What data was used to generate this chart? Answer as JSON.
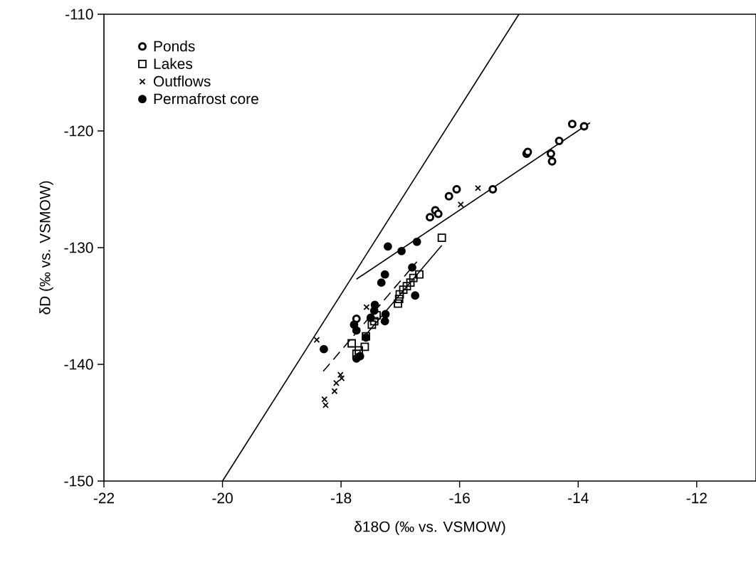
{
  "chart_data": {
    "type": "scatter",
    "xlabel": "δ18O (‰ vs. VSMOW)",
    "ylabel": "δD (‰ vs. VSMOW)",
    "xlim": [
      -22,
      -11
    ],
    "ylim": [
      -150,
      -110
    ],
    "xticks": [
      -22,
      -20,
      -18,
      -16,
      -14,
      -12
    ],
    "yticks": [
      -150,
      -140,
      -130,
      -120,
      -110
    ],
    "grid": false,
    "legend": "top left",
    "series": [
      {
        "name": "Ponds",
        "color": "#000000",
        "marker": "circle",
        "x": [
          -16.5,
          -16.41,
          -16.36,
          -16.18,
          -16.05,
          -15.44,
          -14.87,
          -14.85,
          -14.46,
          -14.44,
          -14.32,
          -14.1,
          -13.9,
          -17.74
        ],
        "values": [
          -127.4,
          -126.8,
          -127.1,
          -125.6,
          -125.0,
          -125.0,
          -121.95,
          -121.8,
          -121.95,
          -122.6,
          -120.85,
          -119.4,
          -119.6,
          -136.1
        ]
      },
      {
        "name": "Lakes",
        "color": "#000000",
        "marker": "square",
        "x": [
          -16.3,
          -16.68,
          -16.78,
          -16.83,
          -16.89,
          -16.95,
          -17.01,
          -17.02,
          -17.04,
          -17.4,
          -17.44,
          -17.48,
          -17.58,
          -17.82,
          -17.6,
          -17.7,
          -17.74
        ],
        "values": [
          -129.15,
          -132.3,
          -132.6,
          -133.0,
          -133.3,
          -133.6,
          -134.0,
          -134.4,
          -134.8,
          -135.8,
          -136.3,
          -136.6,
          -137.6,
          -138.2,
          -138.5,
          -138.8,
          -139.1
        ]
      },
      {
        "name": "Outflows",
        "color": "#000000",
        "marker": "cross",
        "x": [
          -18.41,
          -17.57,
          -18.01,
          -17.99,
          -18.08,
          -18.11,
          -18.28,
          -18.26,
          -15.98,
          -15.69
        ],
        "values": [
          -137.9,
          -135.1,
          -140.9,
          -141.2,
          -141.6,
          -142.3,
          -143.0,
          -143.5,
          -126.3,
          -124.9
        ]
      },
      {
        "name": "Permafrost core",
        "color": "#000000",
        "marker": "circle",
        "x": [
          -17.21,
          -16.98,
          -16.72,
          -17.26,
          -17.32,
          -16.8,
          -16.75,
          -17.43,
          -17.44,
          -17.25,
          -17.26,
          -17.5,
          -17.78,
          -17.74,
          -17.58,
          -18.29,
          -17.74,
          -17.68
        ],
        "values": [
          -129.9,
          -130.3,
          -129.5,
          -132.3,
          -133.0,
          -131.7,
          -134.1,
          -134.9,
          -135.4,
          -135.7,
          -136.3,
          -136.0,
          -136.6,
          -137.1,
          -137.7,
          -138.7,
          -139.5,
          -139.3
        ]
      },
      {
        "type": "line",
        "color": "#000000",
        "line_style": "solid",
        "x": [
          -20,
          -15
        ],
        "values": [
          -150,
          -110
        ]
      },
      {
        "type": "line",
        "color": "#000000",
        "line_style": "solid",
        "x": [
          -17.74,
          -13.8
        ],
        "values": [
          -132.7,
          -119.3
        ]
      },
      {
        "type": "line",
        "color": "#000000",
        "line_style": "solid",
        "x": [
          -17.57,
          -16.3
        ],
        "values": [
          -137.4,
          -129.8
        ]
      },
      {
        "type": "line",
        "color": "#000000",
        "line_style": "dashed",
        "x": [
          -18.3,
          -16.72
        ],
        "values": [
          -140.6,
          -131.2
        ]
      }
    ]
  }
}
